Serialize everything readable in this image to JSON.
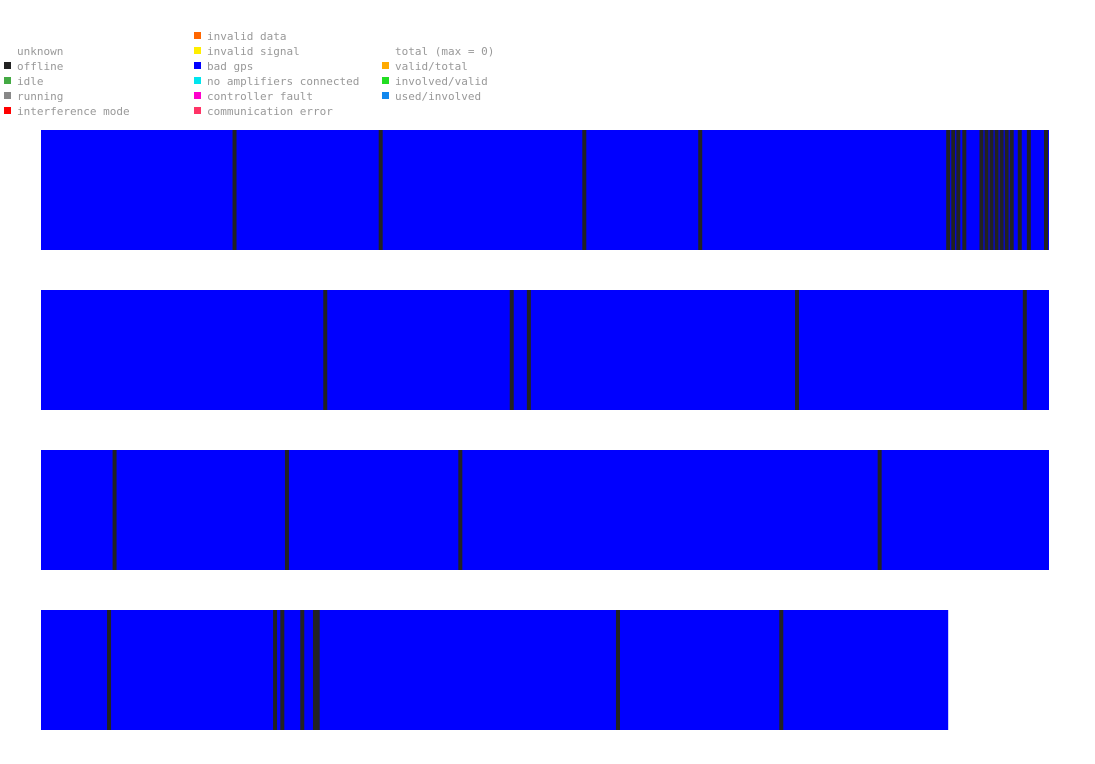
{
  "legend": {
    "left_column": [
      {
        "label": "unknown",
        "color": ""
      },
      {
        "label": "offline",
        "color": "#222222"
      },
      {
        "label": "idle",
        "color": "#44aa44"
      },
      {
        "label": "running",
        "color": "#888888"
      },
      {
        "label": "interference mode",
        "color": "#ff0000"
      }
    ],
    "middle_column": [
      {
        "label": "invalid data",
        "color": "#ff6600"
      },
      {
        "label": "invalid signal",
        "color": "#ffee00"
      },
      {
        "label": "bad gps",
        "color": "#0000ff"
      },
      {
        "label": "no amplifiers connected",
        "color": "#00e5ee"
      },
      {
        "label": "controller fault",
        "color": "#ff00cc"
      },
      {
        "label": "communication error",
        "color": "#ff3366"
      }
    ],
    "right_column": [
      {
        "label": "total (max = 0)",
        "color": ""
      },
      {
        "label": "valid/total",
        "color": "#ffaa00"
      },
      {
        "label": "involved/valid",
        "color": "#22dd22"
      },
      {
        "label": "used/involved",
        "color": "#1188ee"
      }
    ]
  },
  "chart_data": {
    "type": "heatmap",
    "description_colors": {
      "bad_gps": "#0000ff",
      "offline": "#222222"
    },
    "rows": [
      {
        "state": "bad gps",
        "length": 1.0,
        "offline_marks": [
          0.192,
          0.337,
          0.539,
          0.654,
          0.9,
          0.905,
          0.91,
          0.916,
          0.933,
          0.938,
          0.943,
          0.948,
          0.953,
          0.958,
          0.963,
          0.971,
          0.98,
          0.997
        ]
      },
      {
        "state": "bad gps",
        "length": 1.0,
        "offline_marks": [
          0.282,
          0.467,
          0.484,
          0.75,
          0.976
        ]
      },
      {
        "state": "bad gps",
        "length": 1.0,
        "offline_marks": [
          0.073,
          0.244,
          0.416,
          0.832
        ]
      },
      {
        "state": "bad gps",
        "length": 0.9,
        "offline_marks": [
          0.075,
          0.258,
          0.266,
          0.288,
          0.302,
          0.305,
          0.636,
          0.816
        ]
      }
    ]
  }
}
